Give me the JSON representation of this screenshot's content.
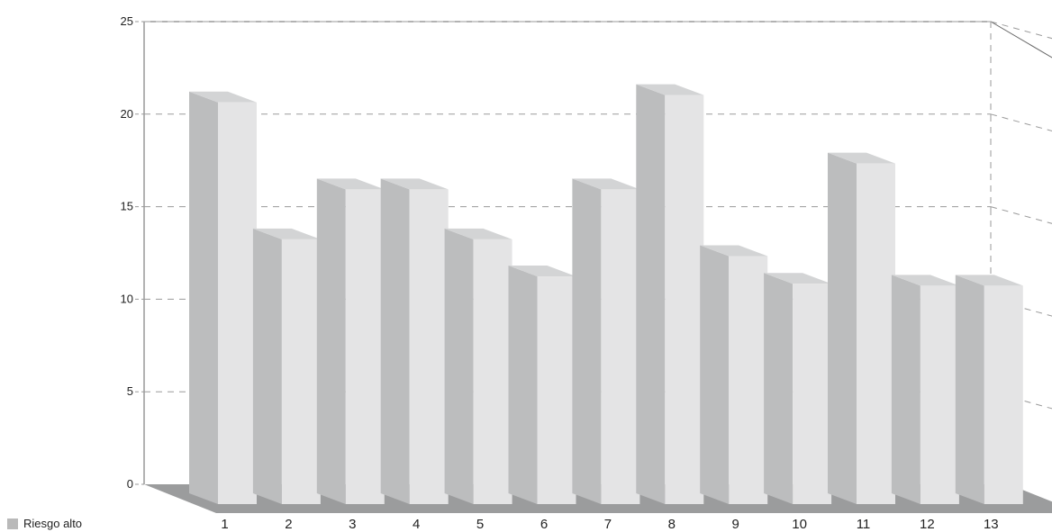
{
  "chart_data": {
    "type": "bar",
    "categories": [
      "1",
      "2",
      "3",
      "4",
      "5",
      "6",
      "7",
      "8",
      "9",
      "10",
      "11",
      "12",
      "13"
    ],
    "series": [
      {
        "name": "Riesgo alto",
        "values": [
          21.8,
          14.4,
          17.1,
          17.1,
          14.4,
          12.4,
          17.1,
          22.2,
          13.5,
          12.0,
          18.5,
          11.9,
          11.9
        ]
      }
    ],
    "y_ticks": [
      0,
      5,
      10,
      15,
      20,
      25
    ],
    "ylim": [
      0,
      25
    ],
    "grid": true,
    "style": "3d",
    "legend_position": "bottom-left"
  },
  "colors": {
    "bar_front": "#e4e4e5",
    "bar_side": "#bcbdbe",
    "bar_top": "#d3d4d5",
    "floor": "#9b9c9d",
    "grid": "#9a9a9a",
    "frame": "#666666",
    "legend_swatch": "#b9b9b9"
  }
}
